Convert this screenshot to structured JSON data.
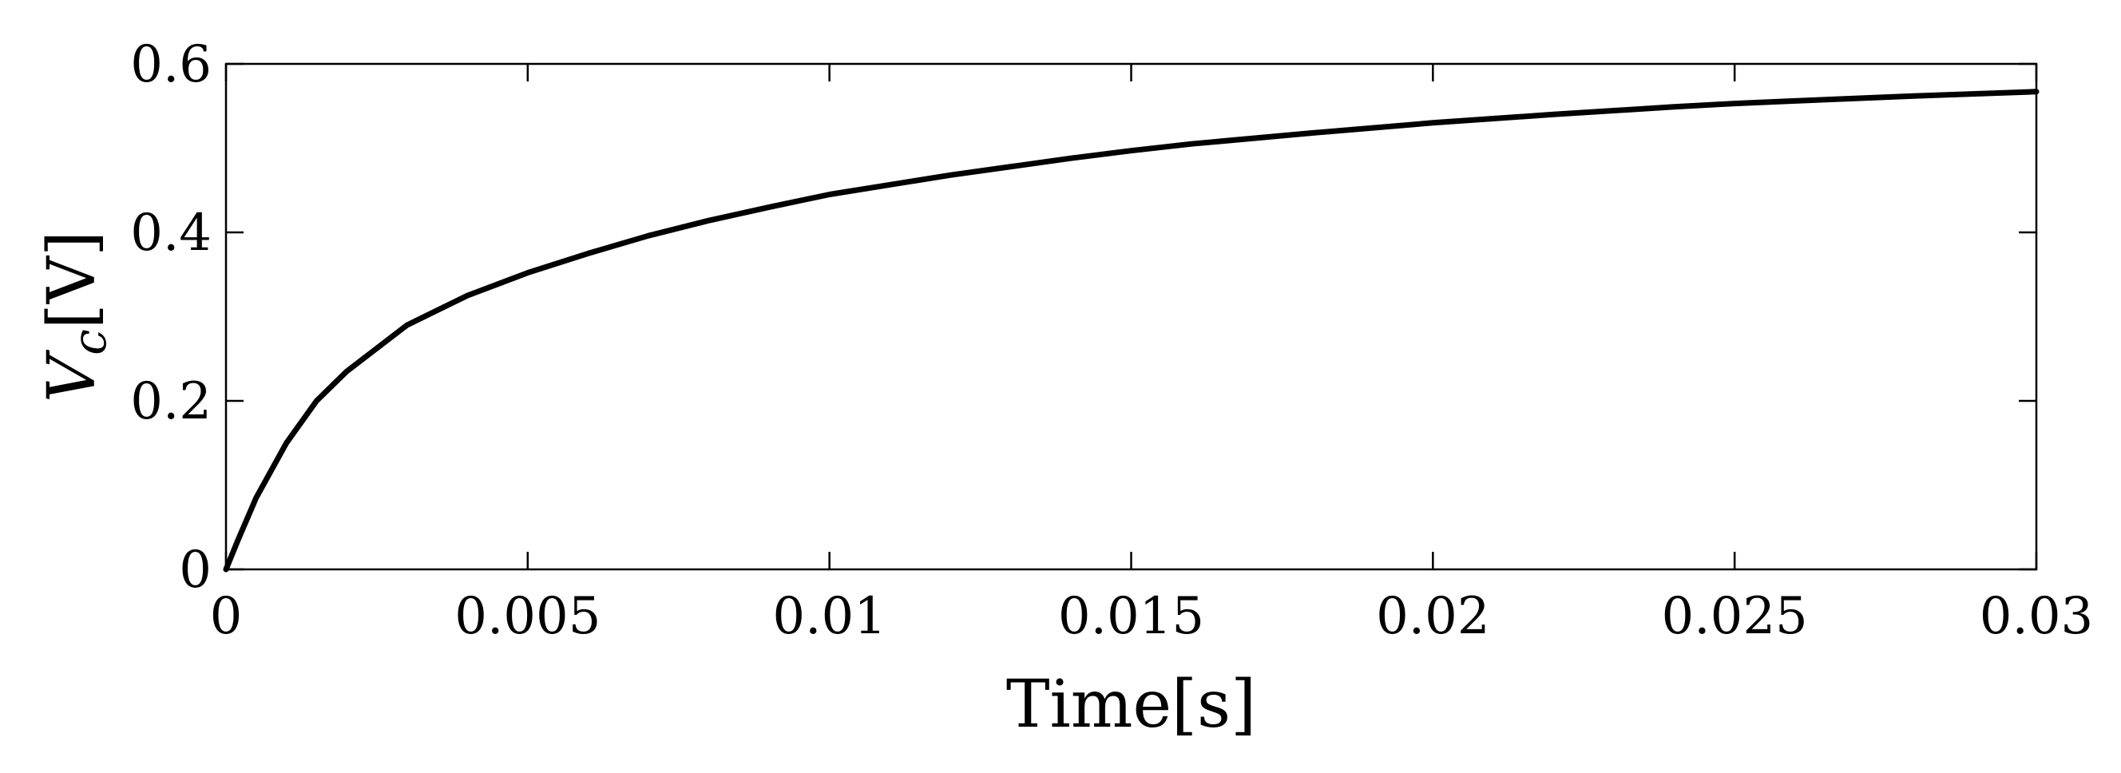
{
  "chart_data": {
    "type": "line",
    "title": "",
    "xlabel": "Time[s]",
    "ylabel_main": "V",
    "ylabel_sub": "c",
    "ylabel_unit": "[V]",
    "xlim": [
      0,
      0.03
    ],
    "ylim": [
      0,
      0.6
    ],
    "x_ticks": [
      0,
      0.005,
      0.01,
      0.015,
      0.02,
      0.025,
      0.03
    ],
    "x_tick_labels": [
      "0",
      "0.005",
      "0.01",
      "0.015",
      "0.02",
      "0.025",
      "0.03"
    ],
    "y_ticks": [
      0,
      0.2,
      0.4,
      0.6
    ],
    "y_tick_labels": [
      "0",
      "0.2",
      "0.4",
      "0.6"
    ],
    "grid": false,
    "legend": "none",
    "line_color": "#000000",
    "series": [
      {
        "x": [
          0,
          0.0002,
          0.0005,
          0.001,
          0.0015,
          0.002,
          0.003,
          0.004,
          0.005,
          0.006,
          0.007,
          0.008,
          0.009,
          0.01,
          0.012,
          0.014,
          0.015,
          0.016,
          0.018,
          0.02,
          0.022,
          0.024,
          0.025,
          0.026,
          0.028,
          0.03
        ],
        "y": [
          0,
          0.035,
          0.085,
          0.15,
          0.2,
          0.235,
          0.29,
          0.325,
          0.352,
          0.375,
          0.396,
          0.414,
          0.43,
          0.445,
          0.468,
          0.488,
          0.497,
          0.505,
          0.518,
          0.53,
          0.54,
          0.549,
          0.553,
          0.556,
          0.562,
          0.567
        ]
      }
    ]
  }
}
